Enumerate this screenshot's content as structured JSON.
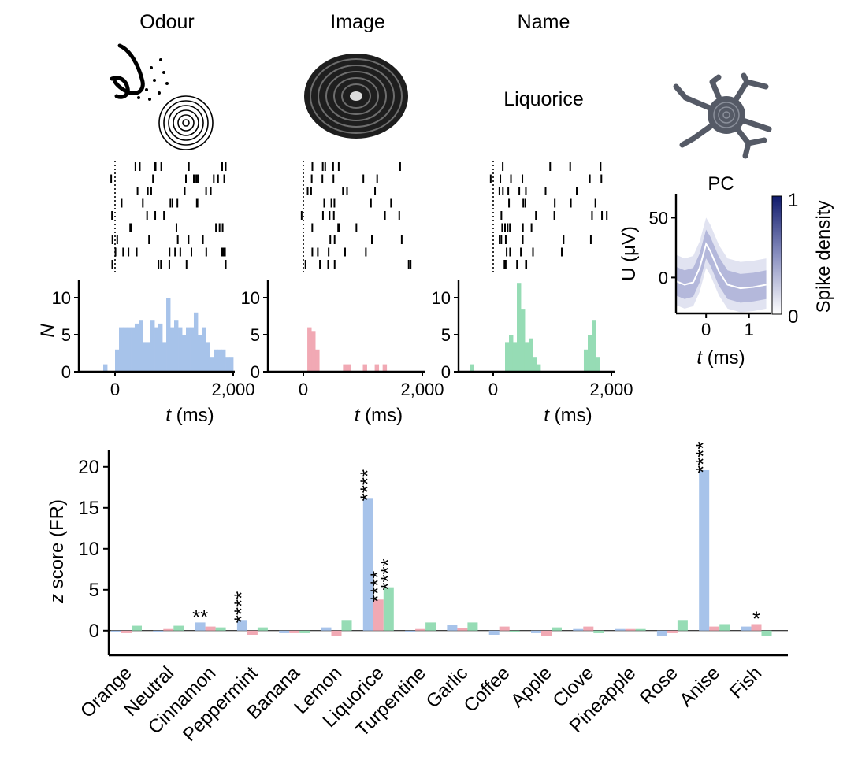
{
  "headers": {
    "odour": "Odour",
    "image": "Image",
    "name": "Name",
    "stimulus_word": "Liquorice",
    "pc": "PC"
  },
  "colors": {
    "odour": "#a7c3ea",
    "image": "#f1a9b4",
    "name": "#96dcb5",
    "density_high": "#101a6b",
    "neuron": "#555a66"
  },
  "icons": {
    "odour": "nose-spiral-icon",
    "image": "liquorice-wheel-icon",
    "neuron": "neuron-icon"
  },
  "chart_data": [
    {
      "type": "bar",
      "panel": "odour",
      "xlabel": "t (ms)",
      "ylabel": "N",
      "xlim": [
        -250,
        2000
      ],
      "ylim": [
        0,
        12
      ],
      "xticks": [
        "0",
        "2,000"
      ],
      "yticks": [
        "0",
        "5",
        "10"
      ],
      "bin_width_ms": 67,
      "bin_starts_ms": [
        -200,
        0,
        67,
        133,
        200,
        267,
        333,
        400,
        467,
        533,
        600,
        667,
        733,
        800,
        867,
        933,
        1000,
        1067,
        1133,
        1200,
        1267,
        1333,
        1400,
        1467,
        1533,
        1600,
        1667,
        1733,
        1800,
        1867,
        1933
      ],
      "values": [
        1,
        3,
        6,
        6,
        6,
        6,
        6.5,
        7,
        4,
        4,
        7,
        6,
        6.5,
        4,
        10,
        6,
        7,
        6,
        5,
        6,
        6,
        8,
        5,
        6,
        4,
        2,
        3,
        3,
        3,
        2,
        2
      ]
    },
    {
      "type": "bar",
      "panel": "image",
      "xlabel": "t (ms)",
      "ylabel": "",
      "xlim": [
        -250,
        2000
      ],
      "ylim": [
        0,
        12
      ],
      "xticks": [
        "0",
        "2,000"
      ],
      "yticks": [
        "0",
        "5",
        "10"
      ],
      "bin_width_ms": 67,
      "bin_starts_ms": [
        67,
        133,
        200,
        667,
        733,
        1000,
        1200,
        1333
      ],
      "values": [
        6,
        5.5,
        3,
        1,
        1,
        1,
        1,
        1
      ]
    },
    {
      "type": "bar",
      "panel": "name",
      "xlabel": "t (ms)",
      "ylabel": "",
      "xlim": [
        -250,
        2000
      ],
      "ylim": [
        0,
        12
      ],
      "xticks": [
        "0",
        "2,000"
      ],
      "yticks": [
        "0",
        "5",
        "10"
      ],
      "bin_width_ms": 67,
      "bin_starts_ms": [
        -400,
        200,
        267,
        333,
        400,
        467,
        533,
        600,
        667,
        733,
        1533,
        1600,
        1667,
        1733
      ],
      "values": [
        1,
        4,
        5,
        4,
        12,
        8.5,
        4,
        4.5,
        2,
        1,
        3,
        5,
        7,
        2
      ]
    },
    {
      "type": "area",
      "panel": "pc-waveform",
      "title": "PC",
      "xlabel": "t (ms)",
      "ylabel": "U (μV)",
      "xlim": [
        -0.7,
        1.5
      ],
      "ylim": [
        -30,
        70
      ],
      "xticks": [
        "0",
        "1"
      ],
      "yticks": [
        "0",
        "50"
      ],
      "colorbar": {
        "label": "Spike density",
        "min": "0",
        "max": "1"
      },
      "mean_trace": {
        "t": [
          -0.7,
          -0.5,
          -0.3,
          -0.15,
          0,
          0.1,
          0.3,
          0.5,
          0.8,
          1.1,
          1.4
        ],
        "u": [
          -3,
          -6,
          -4,
          8,
          28,
          22,
          5,
          -6,
          -9,
          -8,
          -6
        ]
      }
    },
    {
      "type": "bar",
      "panel": "z-score",
      "ylabel": "z score (FR)",
      "ylim": [
        -3,
        22
      ],
      "yticks": [
        "0",
        "5",
        "10",
        "15",
        "20"
      ],
      "series_colors": [
        "#a7c3ea",
        "#f1a9b4",
        "#96dcb5"
      ],
      "categories": [
        "Orange",
        "Neutral",
        "Cinnamon",
        "Peppermint",
        "Banana",
        "Lemon",
        "Liquorice",
        "Turpentine",
        "Garlic",
        "Coffee",
        "Apple",
        "Clove",
        "Pineapple",
        "Rose",
        "Anise",
        "Fish"
      ],
      "series": [
        {
          "values": [
            -0.2,
            -0.2,
            1.0,
            1.3,
            -0.3,
            0.4,
            16.2,
            -0.2,
            0.7,
            -0.5,
            -0.3,
            0.2,
            0.2,
            -0.6,
            19.6,
            0.5
          ]
        },
        {
          "values": [
            -0.3,
            0.2,
            0.5,
            -0.5,
            -0.3,
            -0.6,
            3.8,
            0.2,
            0.3,
            0.5,
            -0.6,
            0.5,
            0.2,
            -0.3,
            0.5,
            0.8
          ]
        },
        {
          "values": [
            0.6,
            0.6,
            0.4,
            0.4,
            -0.3,
            1.3,
            5.3,
            1.0,
            1.0,
            -0.2,
            0.4,
            -0.3,
            0.2,
            1.3,
            0.8,
            -0.6
          ]
        }
      ],
      "annotations": [
        {
          "category": "Cinnamon",
          "series": 0,
          "text": "**"
        },
        {
          "category": "Peppermint",
          "series": 0,
          "text": "****"
        },
        {
          "category": "Liquorice",
          "series": 0,
          "text": "****"
        },
        {
          "category": "Liquorice",
          "series": 1,
          "text": "****"
        },
        {
          "category": "Liquorice",
          "series": 2,
          "text": "****"
        },
        {
          "category": "Anise",
          "series": 0,
          "text": "****"
        },
        {
          "category": "Fish",
          "series": 1,
          "text": "*"
        }
      ]
    }
  ]
}
